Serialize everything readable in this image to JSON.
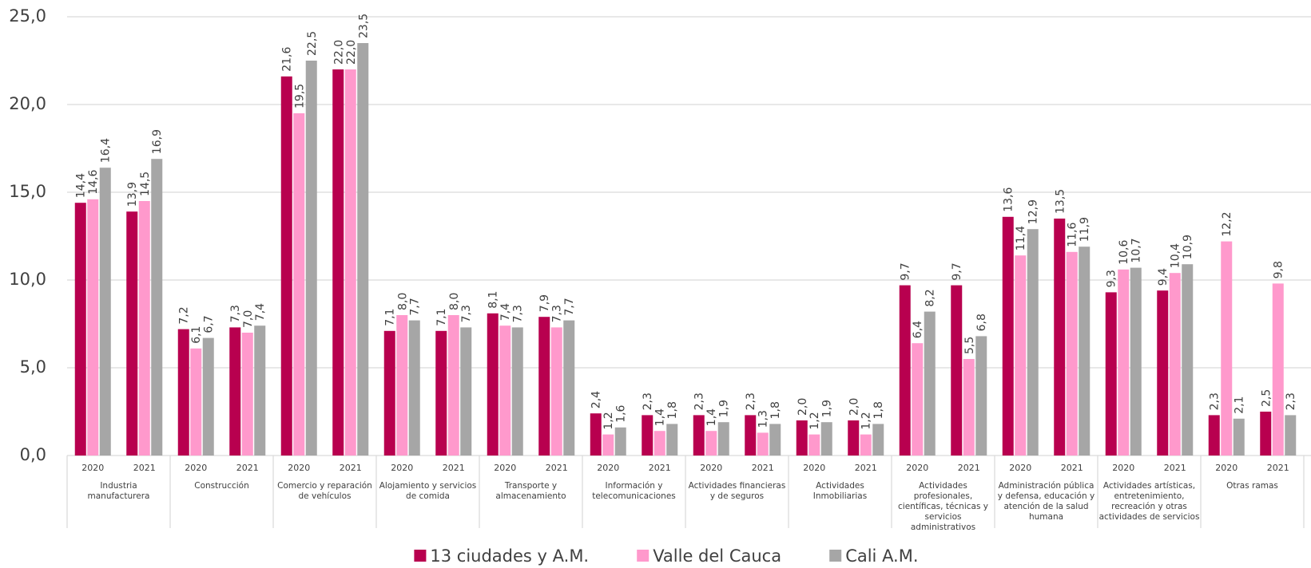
{
  "chart_data": {
    "type": "bar",
    "groups": [
      "Industria manufacturera",
      "Construcción",
      "Comercio y reparación de vehículos",
      "Alojamiento y servicios de comida",
      "Transporte y almacenamiento",
      "Información y telecomunicaciones",
      "Actividades financieras y de seguros",
      "Actividades Inmobiliarias",
      "Actividades profesionales, científicas, técnicas y servicios administrativos",
      "Administración pública y defensa, educación y atención de la salud humana",
      "Actividades artísticas, entretenimiento, recreación y otras actividades de servicios",
      "Otras ramas"
    ],
    "categories": [
      "2020",
      "2021",
      "2020",
      "2021",
      "2020",
      "2021",
      "2020",
      "2021",
      "2020",
      "2021",
      "2020",
      "2021",
      "2020",
      "2021",
      "2020",
      "2021",
      "2020",
      "2021",
      "2020",
      "2021",
      "2020",
      "2021",
      "2020",
      "2021"
    ],
    "series": [
      {
        "name": "13 ciudades y A.M.",
        "color": "#b8004f",
        "values": [
          14.4,
          13.9,
          7.2,
          7.3,
          21.6,
          22.0,
          7.1,
          7.1,
          8.1,
          7.9,
          2.4,
          2.3,
          2.3,
          2.3,
          2.0,
          2.0,
          9.7,
          9.7,
          13.6,
          13.5,
          9.3,
          9.4,
          2.3,
          2.5
        ],
        "value_labels": [
          "14,4",
          "13,9",
          "7,2",
          "7,3",
          "21,6",
          "22,0",
          "7,1",
          "7,1",
          "8,1",
          "7,9",
          "2,4",
          "2,3",
          "2,3",
          "2,3",
          "2,0",
          "2,0",
          "9,7",
          "9,7",
          "13,6",
          "13,5",
          "9,3",
          "9,4",
          "2,3",
          "2,5"
        ]
      },
      {
        "name": "Valle del Cauca",
        "color": "#ff99cc",
        "values": [
          14.6,
          14.5,
          6.1,
          7.0,
          19.5,
          22.0,
          8.0,
          8.0,
          7.4,
          7.3,
          1.2,
          1.4,
          1.4,
          1.3,
          1.2,
          1.2,
          6.4,
          5.5,
          11.4,
          11.6,
          10.6,
          10.4,
          12.2,
          9.8
        ],
        "value_labels": [
          "14,6",
          "14,5",
          "6,1",
          "7,0",
          "19,5",
          "22,0",
          "8,0",
          "8,0",
          "7,4",
          "7,3",
          "1,2",
          "1,4",
          "1,4",
          "1,3",
          "1,2",
          "1,2",
          "6,4",
          "5,5",
          "11,4",
          "11,6",
          "10,6",
          "10,4",
          "12,2",
          "9,8"
        ]
      },
      {
        "name": "Cali A.M.",
        "color": "#a6a6a6",
        "values": [
          16.4,
          16.9,
          6.7,
          7.4,
          22.5,
          23.5,
          7.7,
          7.3,
          7.3,
          7.7,
          1.6,
          1.8,
          1.9,
          1.8,
          1.9,
          1.8,
          8.2,
          6.8,
          12.9,
          11.9,
          10.7,
          10.9,
          2.1,
          2.3
        ],
        "value_labels": [
          "16,4",
          "16,9",
          "6,7",
          "7,4",
          "22,5",
          "23,5",
          "7,7",
          "7,3",
          "7,3",
          "7,7",
          "1,6",
          "1,8",
          "1,9",
          "1,8",
          "1,9",
          "1,8",
          "8,2",
          "6,8",
          "12,9",
          "11,9",
          "10,7",
          "10,9",
          "2,1",
          "2,3"
        ]
      }
    ],
    "ylim": [
      0,
      25
    ],
    "yticks": [
      {
        "value": 0,
        "label": "0,0"
      },
      {
        "value": 5,
        "label": "5,0"
      },
      {
        "value": 10,
        "label": "10,0"
      },
      {
        "value": 15,
        "label": "15,0"
      },
      {
        "value": 20,
        "label": "20,0"
      },
      {
        "value": 25,
        "label": "25,0"
      }
    ],
    "grid": true,
    "legend": "bottom"
  }
}
